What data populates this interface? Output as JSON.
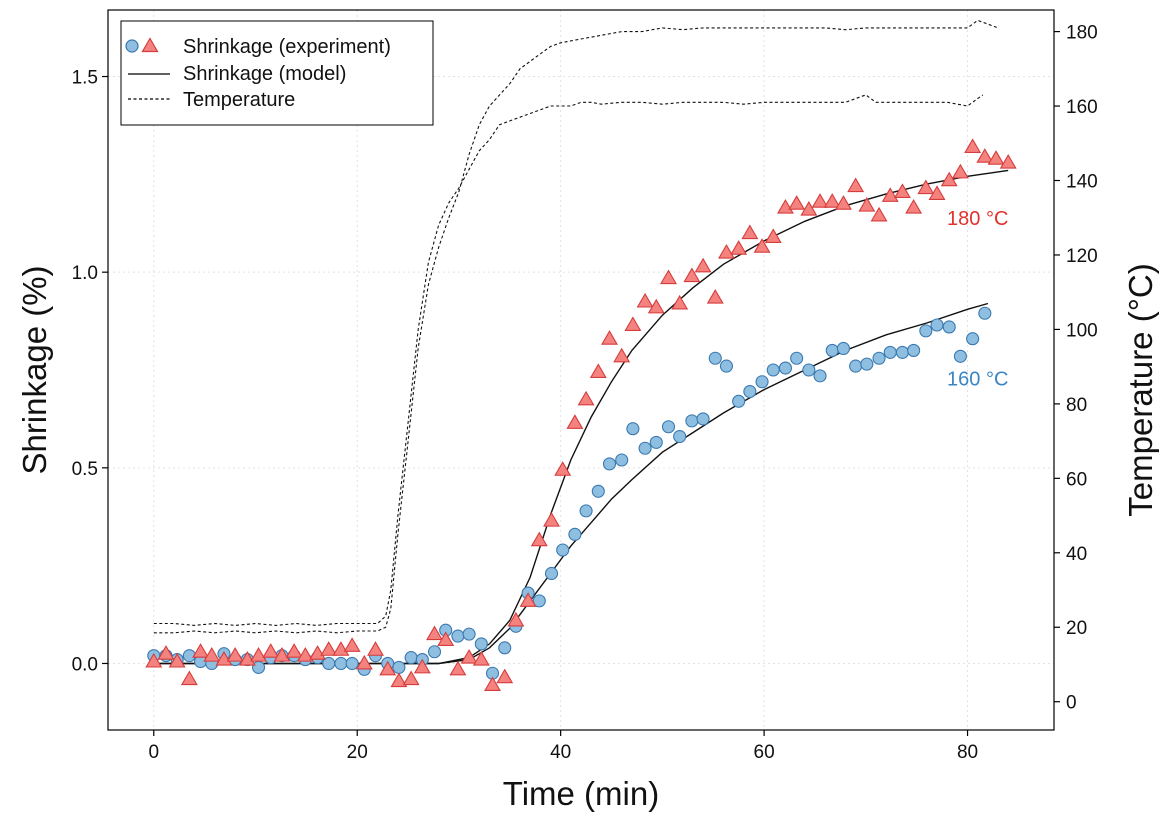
{
  "chart_data": {
    "type": "scatter",
    "xlabel": "Time (min)",
    "ylabel": "Shrinkage (%)",
    "y2label": "Temperature (°C)",
    "xlim": [
      -4.5,
      88.5
    ],
    "ylim": [
      -0.17,
      1.67
    ],
    "y2lim": [
      -7.6,
      185.8
    ],
    "x_ticks": [
      0,
      20,
      40,
      60,
      80
    ],
    "y_ticks": [
      0.0,
      0.5,
      1.0,
      1.5
    ],
    "y_tick_labels": [
      "0.0",
      "0.5",
      "1.0",
      "1.5"
    ],
    "y2_ticks": [
      0,
      20,
      40,
      60,
      80,
      100,
      120,
      140,
      160,
      180
    ],
    "grid": true,
    "legend": {
      "position": "top-left",
      "entries": [
        "Shrinkage (experiment)",
        "Shrinkage (model)",
        "Temperature"
      ]
    },
    "colors": {
      "c160_fill": "#8fbfe0",
      "c160_stroke": "#3a78b0",
      "c180_fill": "#f4837f",
      "c180_stroke": "#d63c3c",
      "label160": "#3a85c4",
      "label180": "#e0322d"
    },
    "annotations": [
      {
        "text": "180 °C",
        "x": 81,
        "y": 1.12,
        "color": "#e0322d"
      },
      {
        "text": "160 °C",
        "x": 81,
        "y": 0.71,
        "color": "#3a85c4"
      }
    ],
    "series": [
      {
        "marker": "circle",
        "points": [
          [
            0,
            0.02
          ],
          [
            1.2,
            0.02
          ],
          [
            2.3,
            0.01
          ],
          [
            3.5,
            0.02
          ],
          [
            4.6,
            0.005
          ],
          [
            5.7,
            0.0
          ],
          [
            6.9,
            0.025
          ],
          [
            8,
            0.01
          ],
          [
            9.2,
            0.01
          ],
          [
            10.3,
            -0.01
          ],
          [
            11.5,
            0.015
          ],
          [
            12.6,
            0.02
          ],
          [
            13.8,
            0.02
          ],
          [
            14.9,
            0.01
          ],
          [
            16.1,
            0.015
          ],
          [
            17.2,
            0.0
          ],
          [
            18.4,
            0.0
          ],
          [
            19.5,
            0.0
          ],
          [
            20.7,
            -0.015
          ],
          [
            21.8,
            0.02
          ],
          [
            23,
            0.0
          ],
          [
            24.1,
            -0.01
          ],
          [
            25.3,
            0.015
          ],
          [
            26.4,
            0.01
          ],
          [
            27.6,
            0.03
          ],
          [
            28.7,
            0.085
          ],
          [
            29.9,
            0.07
          ],
          [
            31,
            0.075
          ],
          [
            32.2,
            0.05
          ],
          [
            33.3,
            -0.025
          ],
          [
            34.5,
            0.04
          ],
          [
            35.6,
            0.095
          ],
          [
            36.8,
            0.18
          ],
          [
            37.9,
            0.16
          ],
          [
            39.1,
            0.23
          ],
          [
            40.2,
            0.29
          ],
          [
            41.4,
            0.33
          ],
          [
            42.5,
            0.39
          ],
          [
            43.7,
            0.44
          ],
          [
            44.8,
            0.51
          ],
          [
            46,
            0.52
          ],
          [
            47.1,
            0.6
          ],
          [
            48.3,
            0.55
          ],
          [
            49.4,
            0.565
          ],
          [
            50.6,
            0.605
          ],
          [
            51.7,
            0.58
          ],
          [
            52.9,
            0.62
          ],
          [
            54,
            0.625
          ],
          [
            55.2,
            0.78
          ],
          [
            56.3,
            0.76
          ],
          [
            57.5,
            0.67
          ],
          [
            58.6,
            0.695
          ],
          [
            59.8,
            0.72
          ],
          [
            60.9,
            0.75
          ],
          [
            62.1,
            0.755
          ],
          [
            63.2,
            0.78
          ],
          [
            64.4,
            0.75
          ],
          [
            65.5,
            0.735
          ],
          [
            66.7,
            0.8
          ],
          [
            67.8,
            0.805
          ],
          [
            69,
            0.76
          ],
          [
            70.1,
            0.765
          ],
          [
            71.3,
            0.78
          ],
          [
            72.4,
            0.795
          ],
          [
            73.6,
            0.795
          ],
          [
            74.7,
            0.8
          ],
          [
            75.9,
            0.85
          ],
          [
            77,
            0.865
          ],
          [
            78.2,
            0.86
          ],
          [
            79.3,
            0.785
          ],
          [
            80.5,
            0.83
          ],
          [
            81.7,
            0.895
          ]
        ]
      },
      {
        "marker": "triangle",
        "points": [
          [
            0,
            0.005
          ],
          [
            1.2,
            0.025
          ],
          [
            2.3,
            0.005
          ],
          [
            3.5,
            -0.04
          ],
          [
            4.6,
            0.03
          ],
          [
            5.7,
            0.02
          ],
          [
            6.9,
            0.01
          ],
          [
            8,
            0.02
          ],
          [
            9.2,
            0.01
          ],
          [
            10.3,
            0.02
          ],
          [
            11.5,
            0.03
          ],
          [
            12.6,
            0.02
          ],
          [
            13.8,
            0.03
          ],
          [
            14.9,
            0.02
          ],
          [
            16.1,
            0.025
          ],
          [
            17.2,
            0.035
          ],
          [
            18.4,
            0.035
          ],
          [
            19.5,
            0.045
          ],
          [
            20.7,
            0.0
          ],
          [
            21.8,
            0.035
          ],
          [
            23,
            -0.015
          ],
          [
            24.1,
            -0.045
          ],
          [
            25.3,
            -0.04
          ],
          [
            26.4,
            -0.01
          ],
          [
            27.6,
            0.075
          ],
          [
            28.7,
            0.06
          ],
          [
            29.9,
            -0.015
          ],
          [
            31,
            0.015
          ],
          [
            32.2,
            0.01
          ],
          [
            33.3,
            -0.055
          ],
          [
            34.5,
            -0.035
          ],
          [
            35.6,
            0.11
          ],
          [
            36.8,
            0.16
          ],
          [
            37.9,
            0.315
          ],
          [
            39.1,
            0.365
          ],
          [
            40.2,
            0.495
          ],
          [
            41.4,
            0.615
          ],
          [
            42.5,
            0.675
          ],
          [
            43.7,
            0.745
          ],
          [
            44.8,
            0.83
          ],
          [
            46,
            0.785
          ],
          [
            47.1,
            0.865
          ],
          [
            48.3,
            0.925
          ],
          [
            49.4,
            0.91
          ],
          [
            50.6,
            0.985
          ],
          [
            51.7,
            0.92
          ],
          [
            52.9,
            0.99
          ],
          [
            54,
            1.015
          ],
          [
            55.2,
            0.935
          ],
          [
            56.3,
            1.05
          ],
          [
            57.5,
            1.06
          ],
          [
            58.6,
            1.1
          ],
          [
            59.8,
            1.065
          ],
          [
            60.9,
            1.09
          ],
          [
            62.1,
            1.165
          ],
          [
            63.2,
            1.175
          ],
          [
            64.4,
            1.16
          ],
          [
            65.5,
            1.18
          ],
          [
            66.7,
            1.18
          ],
          [
            67.8,
            1.175
          ],
          [
            69,
            1.22
          ],
          [
            70.1,
            1.17
          ],
          [
            71.3,
            1.145
          ],
          [
            72.4,
            1.195
          ],
          [
            73.6,
            1.205
          ],
          [
            74.7,
            1.165
          ],
          [
            75.9,
            1.215
          ],
          [
            77,
            1.2
          ],
          [
            78.2,
            1.235
          ],
          [
            79.3,
            1.255
          ],
          [
            80.5,
            1.32
          ],
          [
            81.7,
            1.295
          ],
          [
            82.8,
            1.29
          ],
          [
            84,
            1.28
          ]
        ]
      },
      {
        "style": "solid",
        "points": [
          [
            0,
            0.0
          ],
          [
            28,
            0.0
          ],
          [
            31,
            0.015
          ],
          [
            33,
            0.05
          ],
          [
            35,
            0.11
          ],
          [
            37,
            0.22
          ],
          [
            39,
            0.38
          ],
          [
            41,
            0.52
          ],
          [
            43,
            0.63
          ],
          [
            45,
            0.72
          ],
          [
            47,
            0.8
          ],
          [
            50,
            0.89
          ],
          [
            53,
            0.96
          ],
          [
            56,
            1.02
          ],
          [
            60,
            1.08
          ],
          [
            64,
            1.13
          ],
          [
            68,
            1.17
          ],
          [
            72,
            1.2
          ],
          [
            76,
            1.225
          ],
          [
            80,
            1.245
          ],
          [
            84,
            1.26
          ]
        ]
      },
      {
        "style": "solid",
        "points": [
          [
            0,
            0.0
          ],
          [
            28,
            0.0
          ],
          [
            31,
            0.01
          ],
          [
            33,
            0.04
          ],
          [
            35,
            0.09
          ],
          [
            37,
            0.16
          ],
          [
            39,
            0.23
          ],
          [
            41,
            0.3
          ],
          [
            43,
            0.36
          ],
          [
            45,
            0.42
          ],
          [
            47,
            0.47
          ],
          [
            50,
            0.54
          ],
          [
            53,
            0.59
          ],
          [
            56,
            0.64
          ],
          [
            60,
            0.7
          ],
          [
            64,
            0.75
          ],
          [
            68,
            0.8
          ],
          [
            72,
            0.84
          ],
          [
            76,
            0.87
          ],
          [
            80,
            0.905
          ],
          [
            82,
            0.92
          ]
        ]
      },
      {
        "style": "dashed",
        "axis": "y2",
        "points": [
          [
            0,
            21
          ],
          [
            2,
            21
          ],
          [
            4,
            20.5
          ],
          [
            6,
            21
          ],
          [
            8,
            20.5
          ],
          [
            10,
            21
          ],
          [
            12,
            20.5
          ],
          [
            14,
            21
          ],
          [
            16,
            20.5
          ],
          [
            18,
            21
          ],
          [
            20,
            21
          ],
          [
            22,
            21
          ],
          [
            22.8,
            23
          ],
          [
            23.3,
            30
          ],
          [
            24,
            50
          ],
          [
            25,
            75
          ],
          [
            26,
            100
          ],
          [
            27,
            118
          ],
          [
            28,
            128
          ],
          [
            29,
            134
          ],
          [
            30,
            138
          ],
          [
            31,
            143
          ],
          [
            32,
            148
          ],
          [
            33,
            151
          ],
          [
            33.5,
            153
          ],
          [
            34,
            155
          ],
          [
            35,
            156
          ],
          [
            36,
            157
          ],
          [
            37,
            158
          ],
          [
            38,
            159
          ],
          [
            39,
            160
          ],
          [
            40,
            160
          ],
          [
            41,
            160
          ],
          [
            42,
            161
          ],
          [
            43,
            161
          ],
          [
            44,
            160.5
          ],
          [
            46,
            161
          ],
          [
            48,
            161
          ],
          [
            50,
            160.5
          ],
          [
            52,
            161
          ],
          [
            54,
            161
          ],
          [
            56,
            161
          ],
          [
            58,
            160.5
          ],
          [
            60,
            161
          ],
          [
            62,
            161
          ],
          [
            64,
            161
          ],
          [
            66,
            161
          ],
          [
            68,
            161
          ],
          [
            69,
            162
          ],
          [
            70,
            163
          ],
          [
            71,
            161
          ],
          [
            72,
            161
          ],
          [
            74,
            161
          ],
          [
            76,
            161
          ],
          [
            78,
            161
          ],
          [
            80,
            160
          ],
          [
            81,
            162
          ],
          [
            81.5,
            163
          ]
        ]
      },
      {
        "style": "dashed",
        "axis": "y2",
        "points": [
          [
            0,
            18.5
          ],
          [
            2,
            18.5
          ],
          [
            4,
            19
          ],
          [
            6,
            18.5
          ],
          [
            8,
            19
          ],
          [
            10,
            18.5
          ],
          [
            12,
            19
          ],
          [
            14,
            18.5
          ],
          [
            16,
            19
          ],
          [
            18,
            18.5
          ],
          [
            20,
            19
          ],
          [
            22,
            19
          ],
          [
            22.8,
            20
          ],
          [
            23.3,
            25
          ],
          [
            24,
            45
          ],
          [
            25,
            70
          ],
          [
            26,
            95
          ],
          [
            27,
            112
          ],
          [
            28,
            122
          ],
          [
            29,
            130
          ],
          [
            30,
            137
          ],
          [
            31,
            147
          ],
          [
            32,
            155
          ],
          [
            33,
            160
          ],
          [
            34,
            163
          ],
          [
            35,
            166
          ],
          [
            36,
            170
          ],
          [
            37,
            172
          ],
          [
            38,
            174
          ],
          [
            39,
            176
          ],
          [
            40,
            177
          ],
          [
            42,
            178
          ],
          [
            44,
            179
          ],
          [
            46,
            180
          ],
          [
            48,
            180
          ],
          [
            50,
            181
          ],
          [
            52,
            180.5
          ],
          [
            54,
            181
          ],
          [
            56,
            181
          ],
          [
            58,
            181
          ],
          [
            60,
            181
          ],
          [
            62,
            181
          ],
          [
            64,
            181
          ],
          [
            66,
            181
          ],
          [
            68,
            180.5
          ],
          [
            70,
            181
          ],
          [
            72,
            181
          ],
          [
            74,
            181
          ],
          [
            76,
            181
          ],
          [
            78,
            181
          ],
          [
            80,
            181
          ],
          [
            81,
            183
          ],
          [
            82,
            182
          ],
          [
            83,
            181
          ]
        ]
      }
    ]
  }
}
